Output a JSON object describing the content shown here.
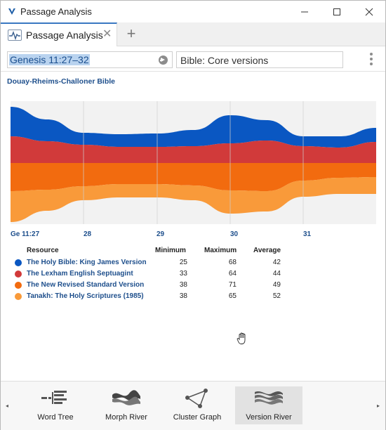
{
  "window": {
    "title": "Passage Analysis",
    "icon": "logos-v-icon"
  },
  "tabs": [
    {
      "label": "Passage Analysis",
      "icon": "pulse-icon"
    }
  ],
  "tab_add_glyph": "+",
  "toolbar": {
    "reference": "Genesis 11:27–32",
    "versions": "Bible: Core versions"
  },
  "bible_name": "Douay-Rheims-Challoner Bible",
  "chart_data": {
    "type": "area",
    "x_ticks": [
      "Ge 11:27",
      "28",
      "29",
      "30",
      "31"
    ],
    "series": [
      {
        "name": "The Holy Bible: King James Version",
        "color": "#0a57c2",
        "min": 25,
        "max": 68,
        "avg": 42
      },
      {
        "name": "The Lexham English Septuagint",
        "color": "#d13a3a",
        "min": 33,
        "max": 64,
        "avg": 44
      },
      {
        "name": "The New Revised Standard Version",
        "color": "#f26b0f",
        "min": 38,
        "max": 71,
        "avg": 49
      },
      {
        "name": "Tanakh: The Holy Scriptures (1985)",
        "color": "#f99a3a",
        "min": 38,
        "max": 65,
        "avg": 52
      }
    ],
    "grid": true
  },
  "table": {
    "headers": {
      "resource": "Resource",
      "minimum": "Minimum",
      "maximum": "Maximum",
      "average": "Average"
    }
  },
  "visualizations": [
    {
      "label": "Word Tree",
      "icon": "word-tree-icon",
      "active": false
    },
    {
      "label": "Morph River",
      "icon": "morph-river-icon",
      "active": false
    },
    {
      "label": "Cluster Graph",
      "icon": "cluster-graph-icon",
      "active": false
    },
    {
      "label": "Version River",
      "icon": "version-river-icon",
      "active": true
    }
  ],
  "nav": {
    "left": "◂",
    "right": "▸"
  }
}
